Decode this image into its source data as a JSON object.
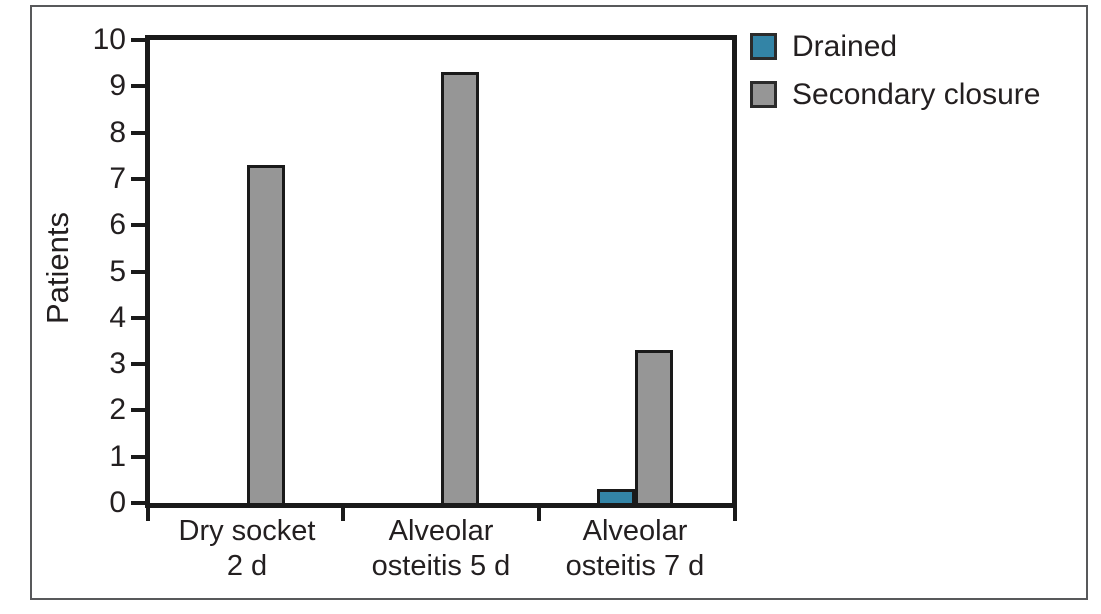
{
  "chart_data": {
    "type": "bar",
    "title": "",
    "xlabel": "",
    "ylabel": "Patients",
    "ylim": [
      0,
      10
    ],
    "ytick_step": 1,
    "grid": false,
    "legend_position": "top-right-outside",
    "categories": [
      "Dry socket\n2 d",
      "Alveolar\nosteitis 5 d",
      "Alveolar\nosteitis 7 d"
    ],
    "series": [
      {
        "name": "Drained",
        "color": "#3384a6",
        "values": [
          0,
          0,
          0.3
        ]
      },
      {
        "name": "Secondary closure",
        "color": "#969696",
        "values": [
          7.3,
          9.3,
          3.3
        ]
      }
    ]
  },
  "colors": {
    "bar_border": "#1a1a1a",
    "axis": "#1a1a1a",
    "outer_frame": "#58595b",
    "text": "#231f20",
    "background": "#ffffff"
  }
}
